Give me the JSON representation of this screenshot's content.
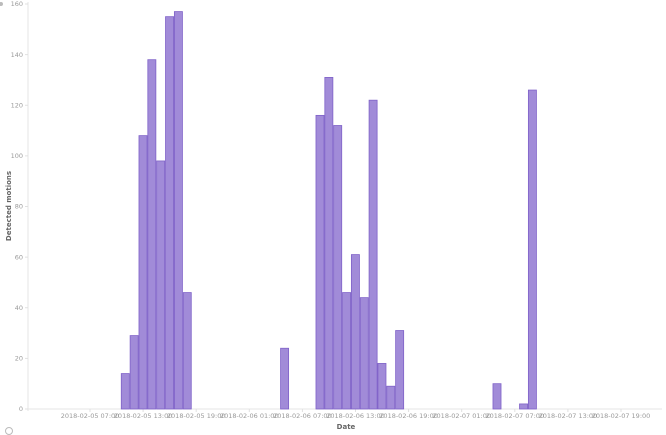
{
  "chart_data": {
    "type": "bar",
    "title": "",
    "xlabel": "Date",
    "ylabel": "Detected motions",
    "ylim": [
      0,
      160
    ],
    "yticks": [
      0,
      20,
      40,
      60,
      80,
      100,
      120,
      140,
      160
    ],
    "xticks": [
      "2018-02-05 07:00",
      "2018-02-05 13:00",
      "2018-02-05 19:00",
      "2018-02-06 01:00",
      "2018-02-06 07:00",
      "2018-02-06 13:00",
      "2018-02-06 19:00",
      "2018-02-07 01:00",
      "2018-02-07 07:00",
      "2018-02-07 13:00",
      "2018-02-07 19:00"
    ],
    "grid": false,
    "legend": null,
    "bar_color": "#a18bd8",
    "bar_edge_color": "#7f62c8",
    "interval": "1 hour",
    "x": [
      "2018-02-05 11:00",
      "2018-02-05 12:00",
      "2018-02-05 13:00",
      "2018-02-05 14:00",
      "2018-02-05 15:00",
      "2018-02-05 16:00",
      "2018-02-05 17:00",
      "2018-02-05 18:00",
      "2018-02-06 05:00",
      "2018-02-06 09:00",
      "2018-02-06 10:00",
      "2018-02-06 11:00",
      "2018-02-06 12:00",
      "2018-02-06 13:00",
      "2018-02-06 14:00",
      "2018-02-06 15:00",
      "2018-02-06 16:00",
      "2018-02-06 17:00",
      "2018-02-06 18:00",
      "2018-02-07 05:00",
      "2018-02-07 08:00",
      "2018-02-07 09:00"
    ],
    "hour_offsets": [
      4,
      5,
      6,
      7,
      8,
      9,
      10,
      11,
      22,
      26,
      27,
      28,
      29,
      30,
      31,
      32,
      33,
      34,
      35,
      46,
      49,
      50
    ],
    "values": [
      14,
      29,
      108,
      138,
      98,
      155,
      157,
      46,
      24,
      116,
      131,
      112,
      46,
      61,
      44,
      122,
      18,
      9,
      31,
      10,
      2,
      126
    ]
  }
}
